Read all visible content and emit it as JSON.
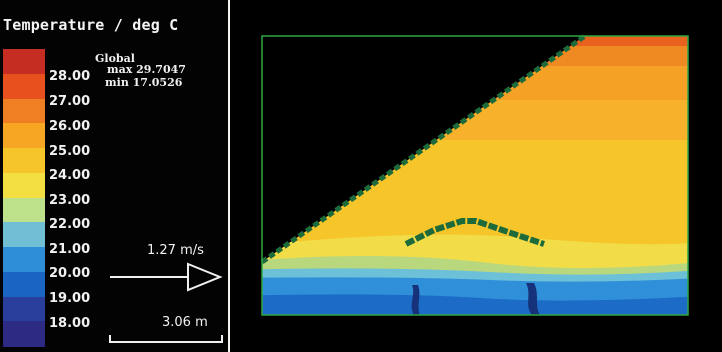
{
  "title": "Temperature / deg C",
  "colorbar": {
    "labels": [
      "28.00",
      "27.00",
      "26.00",
      "25.00",
      "24.00",
      "23.00",
      "22.00",
      "21.00",
      "20.00",
      "19.00",
      "18.00"
    ],
    "colors": [
      "#c62d22",
      "#e8501e",
      "#ef7f22",
      "#f7a624",
      "#f6c52a",
      "#f4df42",
      "#bde08b",
      "#71bfd5",
      "#2e8fd8",
      "#1a64c3",
      "#2a3e9b",
      "#2c2a82"
    ]
  },
  "global": {
    "heading": "Global",
    "max": "max 29.7047",
    "min": "min 17.0526"
  },
  "velocity": {
    "label": "1.27  m/s"
  },
  "scale": {
    "label": "3.06  m"
  },
  "colors": {
    "background": "#000000",
    "frame": "#2ea83e",
    "thermocline_marker": "#1d6b3a",
    "divider": "#f4f4ee"
  }
}
